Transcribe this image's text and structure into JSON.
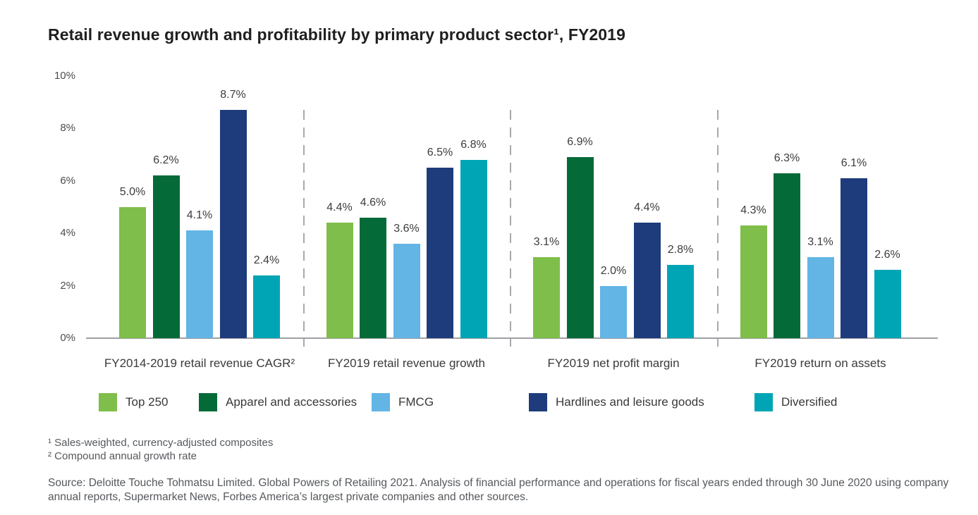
{
  "chart_data": {
    "type": "bar",
    "title": "Retail revenue growth and profitability by primary product sector¹, FY2019",
    "categories": [
      "FY2014-2019 retail revenue CAGR²",
      "FY2019 retail revenue growth",
      "FY2019 net profit margin",
      "FY2019 return on assets"
    ],
    "series": [
      {
        "name": "Top 250",
        "color": "#7fbe4a",
        "values": [
          5.0,
          4.4,
          3.1,
          4.3
        ],
        "labels": [
          "5.0%",
          "4.4%",
          "3.1%",
          "4.3%"
        ]
      },
      {
        "name": "Apparel and accessories",
        "color": "#046a38",
        "values": [
          6.2,
          4.6,
          6.9,
          6.3
        ],
        "labels": [
          "6.2%",
          "4.6%",
          "6.9%",
          "6.3%"
        ]
      },
      {
        "name": "FMCG",
        "color": "#62b5e5",
        "values": [
          4.1,
          3.6,
          2.0,
          3.1
        ],
        "labels": [
          "4.1%",
          "3.6%",
          "2.0%",
          "3.1%"
        ]
      },
      {
        "name": "Hardlines and leisure goods",
        "color": "#1e3c7b",
        "values": [
          8.7,
          6.5,
          4.4,
          6.1
        ],
        "labels": [
          "8.7%",
          "6.5%",
          "4.4%",
          "6.1%"
        ]
      },
      {
        "name": "Diversified",
        "color": "#00a5b5",
        "values": [
          2.4,
          6.8,
          2.8,
          2.6
        ],
        "labels": [
          "2.4%",
          "6.8%",
          "2.8%",
          "2.6%"
        ]
      }
    ],
    "y_ticks": [
      "0%",
      "2%",
      "4%",
      "6%",
      "8%",
      "10%"
    ],
    "ylim": [
      0,
      10
    ],
    "grid": false,
    "legend_position": "bottom",
    "colors": {
      "axis": "#9ea0a3",
      "separator": "#a7a9ac",
      "value_text": "#3c3c3c",
      "note_text": "#55585c"
    }
  },
  "footnotes": [
    "¹ Sales-weighted, currency-adjusted composites",
    "² Compound annual growth rate"
  ],
  "source": "Source: Deloitte Touche Tohmatsu Limited. Global Powers of Retailing 2021. Analysis of financial performance and operations for fiscal years ended through 30 June 2020 using company annual reports, Supermarket News, Forbes America’s largest private companies and other sources."
}
